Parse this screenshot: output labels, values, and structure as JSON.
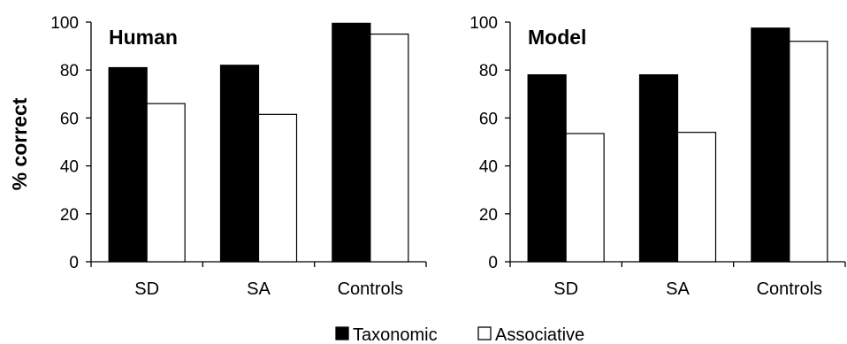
{
  "chart_data": [
    {
      "type": "bar",
      "title": "Human",
      "ylabel": "% correct",
      "xlabel": "",
      "categories": [
        "SD",
        "SA",
        "Controls"
      ],
      "ylim": [
        0,
        100
      ],
      "yticks": [
        0,
        20,
        40,
        60,
        80,
        100
      ],
      "series": [
        {
          "name": "Taxonomic",
          "values": [
            81,
            82,
            99.5
          ]
        },
        {
          "name": "Associative",
          "values": [
            66,
            61.5,
            95
          ]
        }
      ],
      "grid": false
    },
    {
      "type": "bar",
      "title": "Model",
      "ylabel": "",
      "xlabel": "",
      "categories": [
        "SD",
        "SA",
        "Controls"
      ],
      "ylim": [
        0,
        100
      ],
      "yticks": [
        0,
        20,
        40,
        60,
        80,
        100
      ],
      "series": [
        {
          "name": "Taxonomic",
          "values": [
            78,
            78,
            97.5
          ]
        },
        {
          "name": "Associative",
          "values": [
            53.5,
            54,
            92
          ]
        }
      ],
      "grid": false
    }
  ],
  "legend": {
    "placement": "bottom-center",
    "items": [
      {
        "label": "Taxonomic",
        "color": "#000000"
      },
      {
        "label": "Associative",
        "color": "#ffffff"
      }
    ]
  },
  "colors": {
    "taxonomic": "#000000",
    "associative": "#ffffff",
    "outline": "#000000"
  }
}
